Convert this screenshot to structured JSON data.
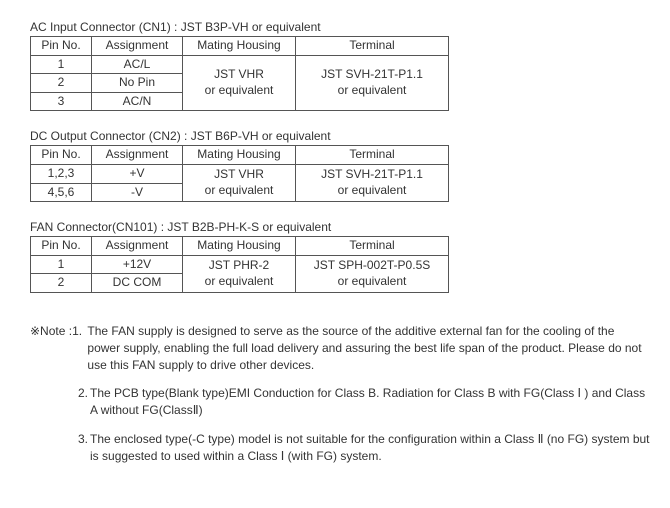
{
  "tables": [
    {
      "title": "AC Input Connector (CN1) : JST B3P-VH or equivalent",
      "headers": {
        "pin": "Pin No.",
        "assign": "Assignment",
        "mating": "Mating Housing",
        "terminal": "Terminal"
      },
      "rows": [
        {
          "pin": "1",
          "assign": "AC/L"
        },
        {
          "pin": "2",
          "assign": "No Pin"
        },
        {
          "pin": "3",
          "assign": "AC/N"
        }
      ],
      "mating": "JST VHR\nor equivalent",
      "terminal": "JST SVH-21T-P1.1\nor equivalent"
    },
    {
      "title": "DC Output Connector (CN2) : JST B6P-VH or equivalent",
      "headers": {
        "pin": "Pin No.",
        "assign": "Assignment",
        "mating": "Mating Housing",
        "terminal": "Terminal"
      },
      "rows": [
        {
          "pin": "1,2,3",
          "assign": "+V"
        },
        {
          "pin": "4,5,6",
          "assign": "-V"
        }
      ],
      "mating": "JST VHR\nor equivalent",
      "terminal": "JST SVH-21T-P1.1\nor equivalent"
    },
    {
      "title": "FAN Connector(CN101) :  JST B2B-PH-K-S or equivalent",
      "headers": {
        "pin": "Pin No.",
        "assign": "Assignment",
        "mating": "Mating Housing",
        "terminal": "Terminal"
      },
      "rows": [
        {
          "pin": "1",
          "assign": "+12V"
        },
        {
          "pin": "2",
          "assign": "DC COM"
        }
      ],
      "mating": "JST PHR-2\nor equivalent",
      "terminal": "JST SPH-002T-P0.5S\nor equivalent"
    }
  ],
  "notes": {
    "prefix": "※Note : ",
    "items": [
      "The FAN supply is designed to serve as the source of the additive external fan for the cooling of the power supply, enabling the full load delivery and assuring the best life span of the product. Please do not use this FAN supply to drive other devices.",
      "The PCB type(Blank type)EMI Conduction for Class B. Radiation for Class B with FG(Class Ⅰ ) and Class A without FG(ClassⅡ)",
      "The enclosed type(-C type) model is not suitable for the configuration within a Class  Ⅱ (no FG) system but is suggested to used within a Class Ⅰ (with FG) system."
    ]
  }
}
